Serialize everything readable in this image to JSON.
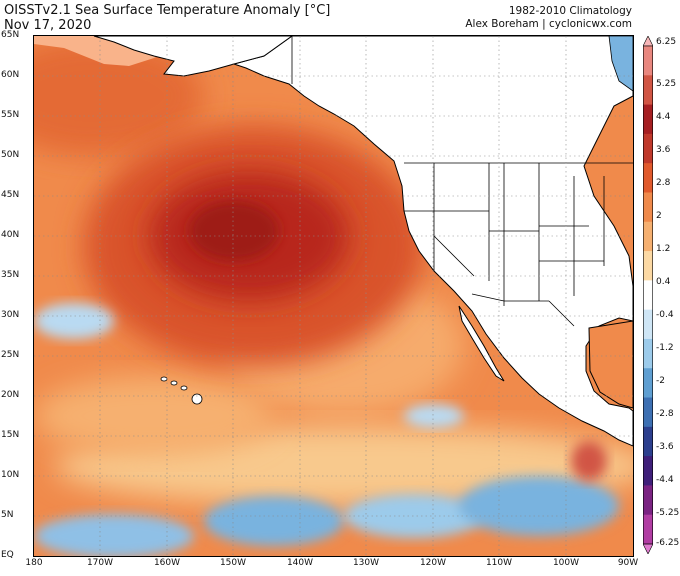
{
  "header": {
    "title": "OISSTv2.1 Sea Surface Temperature Anomaly [°C]",
    "date": "Nov 17, 2020",
    "climatology": "1982-2010 Climatology",
    "credit": "Alex Boreham | cyclonicwx.com"
  },
  "map": {
    "lat_labels": [
      "65N",
      "60N",
      "55N",
      "50N",
      "45N",
      "40N",
      "35N",
      "30N",
      "25N",
      "20N",
      "15N",
      "10N",
      "5N",
      "EQ"
    ],
    "lon_labels": [
      "180",
      "170W",
      "160W",
      "150W",
      "140W",
      "130W",
      "120W",
      "110W",
      "100W",
      "90W"
    ],
    "anomaly_colors": {
      "strong_warm": "#b02318",
      "warm": "#dc5a2c",
      "moderate_warm": "#f08a4b",
      "weak_warm": "#f8c98d",
      "neutral": "#ffffff",
      "weak_cool": "#b9daf2",
      "cool": "#79b3df",
      "land": "#ffffff"
    }
  },
  "colorbar": {
    "ticks": [
      "6.25",
      "5.25",
      "4.4",
      "3.6",
      "2.8",
      "2",
      "1.2",
      "0.4",
      "-0.4",
      "-1.2",
      "-2",
      "-2.8",
      "-3.6",
      "-4.4",
      "-5.25",
      "-6.25"
    ],
    "colors": [
      "#f7b6b8",
      "#e9877f",
      "#d15544",
      "#a61f22",
      "#c0392b",
      "#e15a2c",
      "#f08a4b",
      "#f6b070",
      "#fcd9a4",
      "#ffffff",
      "#cfe6f6",
      "#9ccbeb",
      "#5f9fd2",
      "#3d70b3",
      "#2c3f8e",
      "#3f1f7a",
      "#7b2383",
      "#b13da3",
      "#e07bd0"
    ]
  }
}
